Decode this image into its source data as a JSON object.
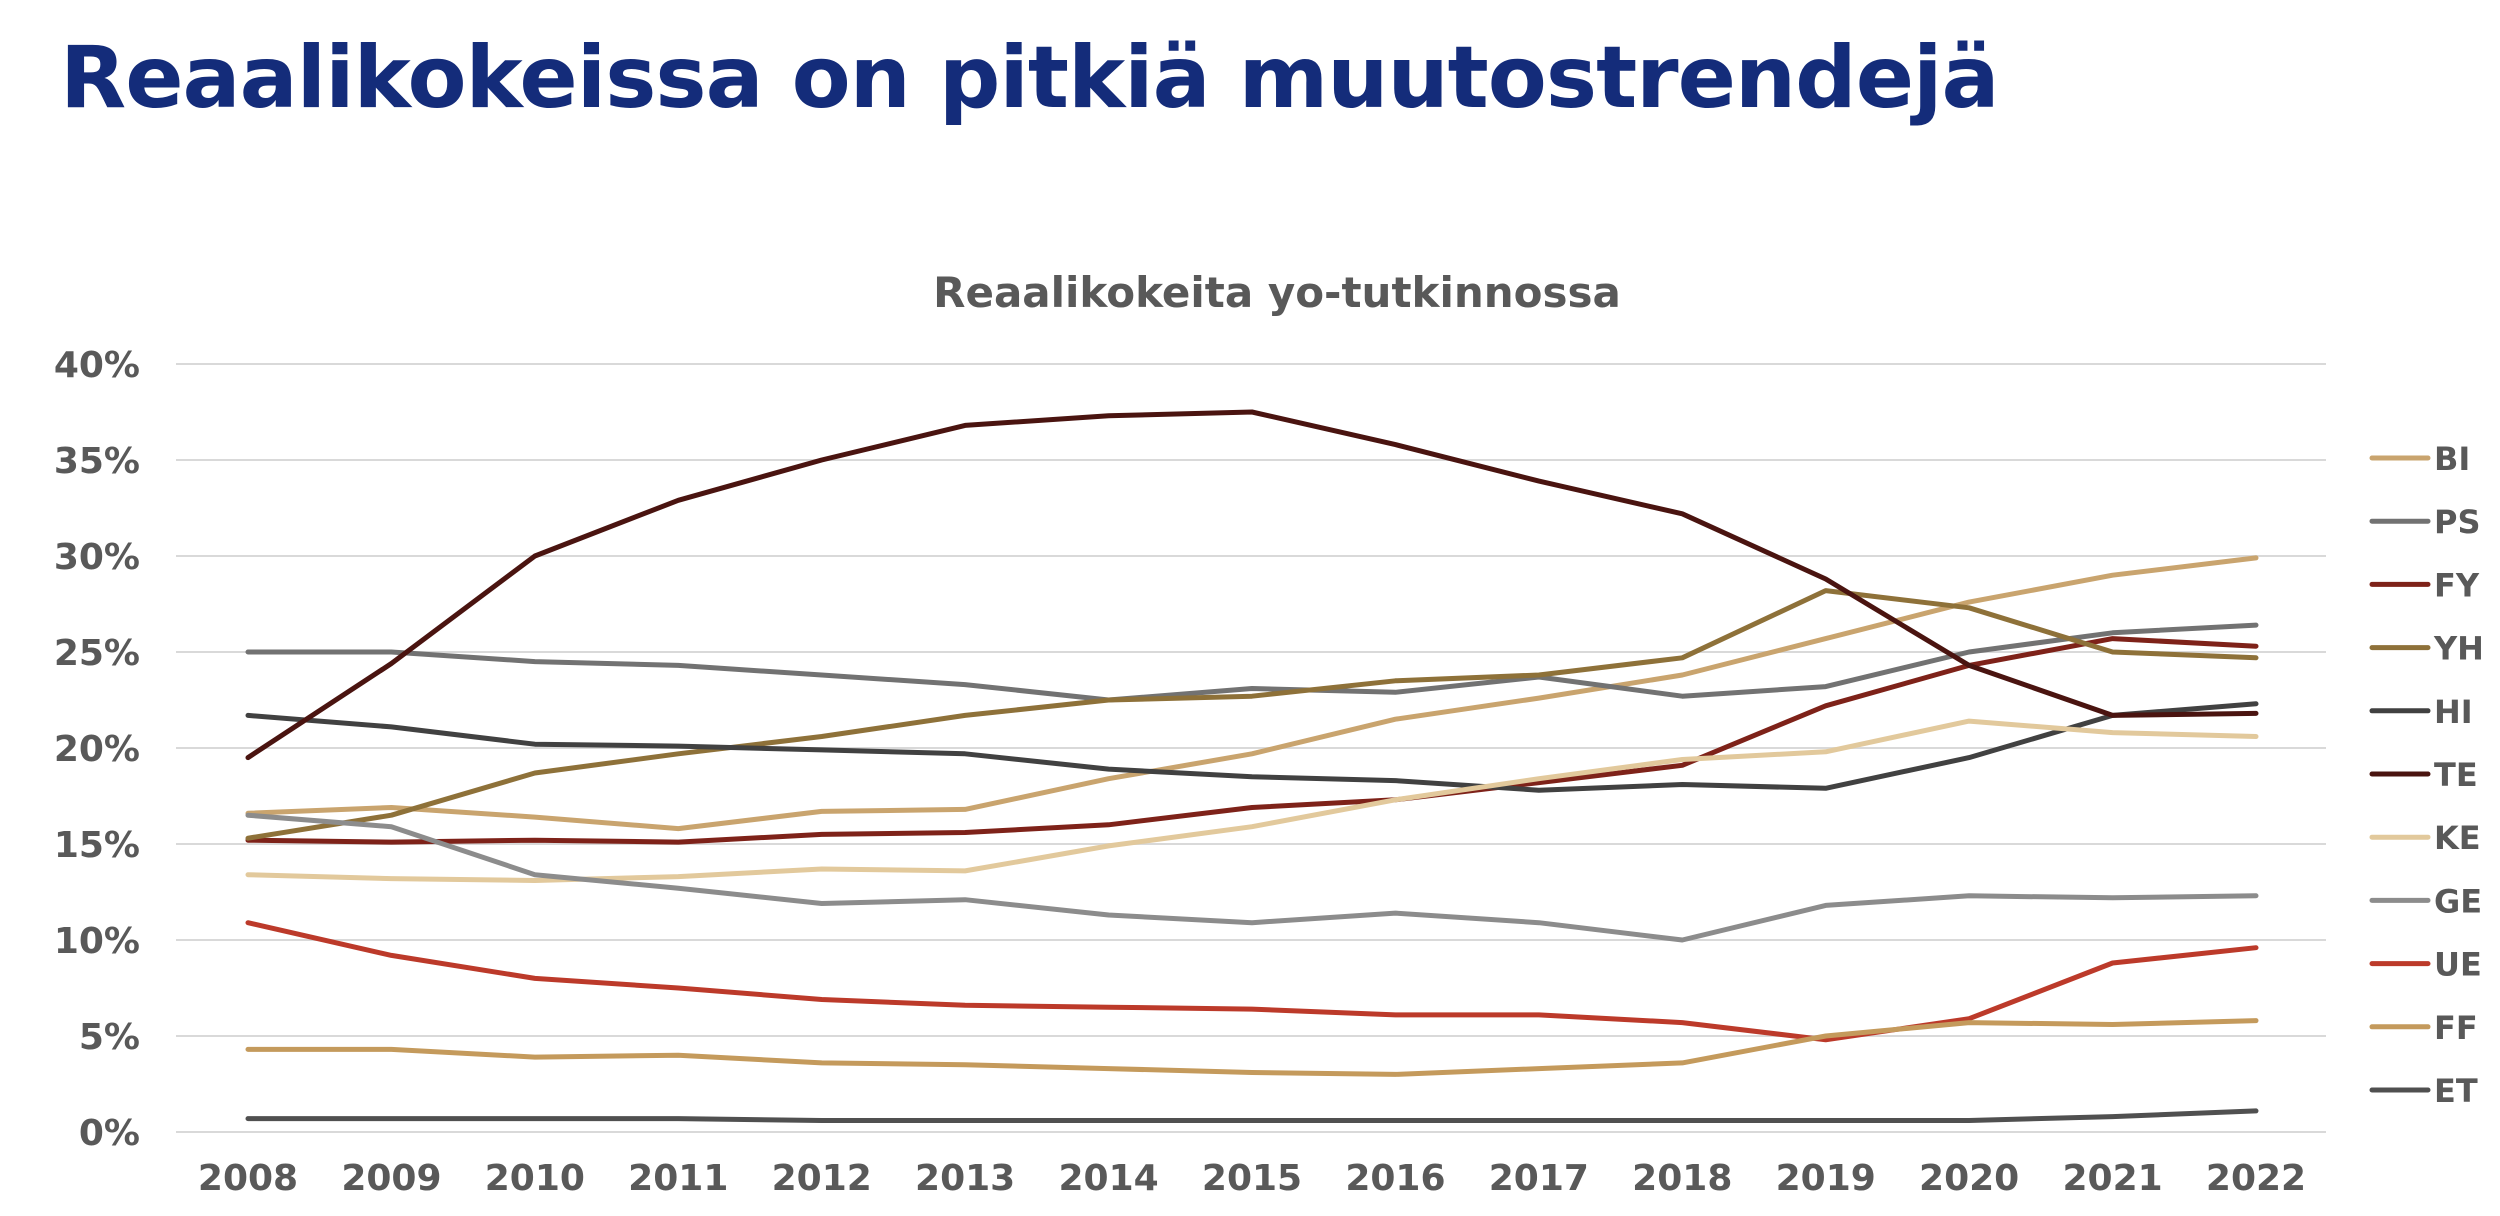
{
  "page": {
    "title": "Reaalikokeissa on pitkiä muutostrendejä"
  },
  "chart_data": {
    "type": "line",
    "title": "Reaalikokeita yo-tutkinnossa",
    "x": [
      "2008",
      "2009",
      "2010",
      "2011",
      "2012",
      "2013",
      "2014",
      "2015",
      "2016",
      "2017",
      "2018",
      "2019",
      "2020",
      "2021",
      "2022"
    ],
    "ylim": [
      0,
      40
    ],
    "yticks": [
      {
        "value": 0,
        "label": "0%"
      },
      {
        "value": 5,
        "label": "5%"
      },
      {
        "value": 10,
        "label": "10%"
      },
      {
        "value": 15,
        "label": "15%"
      },
      {
        "value": 20,
        "label": "20%"
      },
      {
        "value": 25,
        "label": "25%"
      },
      {
        "value": 30,
        "label": "30%"
      },
      {
        "value": 35,
        "label": "35%"
      },
      {
        "value": 40,
        "label": "40%"
      }
    ],
    "grid": true,
    "legend_position": "right",
    "series": [
      {
        "name": "BI",
        "color": "#C9A46E",
        "values": [
          16.6,
          16.9,
          16.4,
          15.8,
          16.7,
          16.8,
          18.4,
          19.7,
          21.5,
          22.6,
          23.8,
          25.7,
          27.6,
          29.0,
          29.9
        ]
      },
      {
        "name": "PS",
        "color": "#727272",
        "values": [
          25.0,
          25.0,
          24.5,
          24.3,
          23.8,
          23.3,
          22.5,
          23.1,
          22.9,
          23.7,
          22.7,
          23.2,
          25.0,
          26.0,
          26.4
        ]
      },
      {
        "name": "FY",
        "color": "#7E2219",
        "values": [
          15.2,
          15.1,
          15.2,
          15.1,
          15.5,
          15.6,
          16.0,
          16.9,
          17.3,
          18.2,
          19.1,
          22.2,
          24.3,
          25.7,
          25.3
        ]
      },
      {
        "name": "YH",
        "color": "#8E7139",
        "values": [
          15.3,
          16.5,
          18.7,
          19.7,
          20.6,
          21.7,
          22.5,
          22.7,
          23.5,
          23.8,
          24.7,
          28.2,
          27.3,
          25.0,
          24.7
        ]
      },
      {
        "name": "HI",
        "color": "#414141",
        "values": [
          21.7,
          21.1,
          20.2,
          20.1,
          19.9,
          19.7,
          18.9,
          18.5,
          18.3,
          17.8,
          18.1,
          17.9,
          19.5,
          21.7,
          22.3
        ]
      },
      {
        "name": "TE",
        "color": "#4A1410",
        "values": [
          19.5,
          24.4,
          30.0,
          32.9,
          35.0,
          36.8,
          37.3,
          37.5,
          35.8,
          33.9,
          32.2,
          28.8,
          24.3,
          21.7,
          21.8
        ]
      },
      {
        "name": "KE",
        "color": "#E2C99C",
        "values": [
          13.4,
          13.2,
          13.1,
          13.3,
          13.7,
          13.6,
          14.9,
          15.9,
          17.3,
          18.4,
          19.4,
          19.8,
          21.4,
          20.8,
          20.6
        ]
      },
      {
        "name": "GE",
        "color": "#8C8C8C",
        "values": [
          16.5,
          15.9,
          13.4,
          12.7,
          11.9,
          12.1,
          11.3,
          10.9,
          11.4,
          10.9,
          10.0,
          11.8,
          12.3,
          12.2,
          12.3
        ]
      },
      {
        "name": "UE",
        "color": "#BC3A2A",
        "values": [
          10.9,
          9.2,
          8.0,
          7.5,
          6.9,
          6.6,
          6.5,
          6.4,
          6.1,
          6.1,
          5.7,
          4.8,
          5.9,
          8.8,
          9.6
        ]
      },
      {
        "name": "FF",
        "color": "#C49A5C",
        "values": [
          4.3,
          4.3,
          3.9,
          4.0,
          3.6,
          3.5,
          3.3,
          3.1,
          3.0,
          3.3,
          3.6,
          5.0,
          5.7,
          5.6,
          5.8
        ]
      },
      {
        "name": "ET",
        "color": "#505050",
        "values": [
          0.7,
          0.7,
          0.7,
          0.7,
          0.6,
          0.6,
          0.6,
          0.6,
          0.6,
          0.6,
          0.6,
          0.6,
          0.6,
          0.8,
          1.1
        ]
      }
    ]
  }
}
